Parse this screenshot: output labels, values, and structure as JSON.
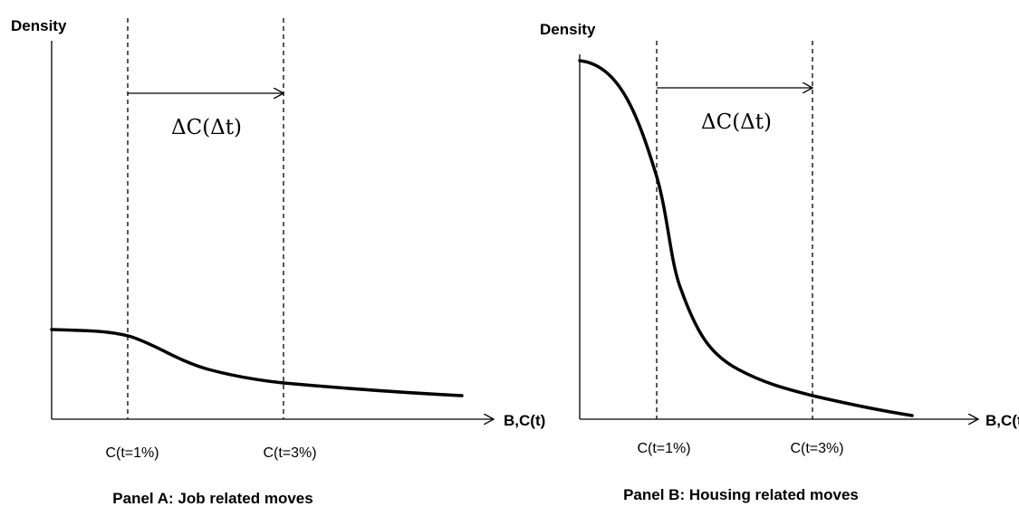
{
  "panels": [
    {
      "y_label": "Density",
      "x_label": "B,C(t)",
      "markers": [
        "C(t=1%)",
        "C(t=3%)"
      ],
      "interval_label": "ΔC(Δt)",
      "caption": "Panel A: Job related moves"
    },
    {
      "y_label": "Density",
      "x_label": "B,C(t)",
      "markers": [
        "C(t=1%)",
        "C(t=3%)"
      ],
      "interval_label": "ΔC(Δt)",
      "caption": "Panel B: Housing related moves"
    }
  ]
}
